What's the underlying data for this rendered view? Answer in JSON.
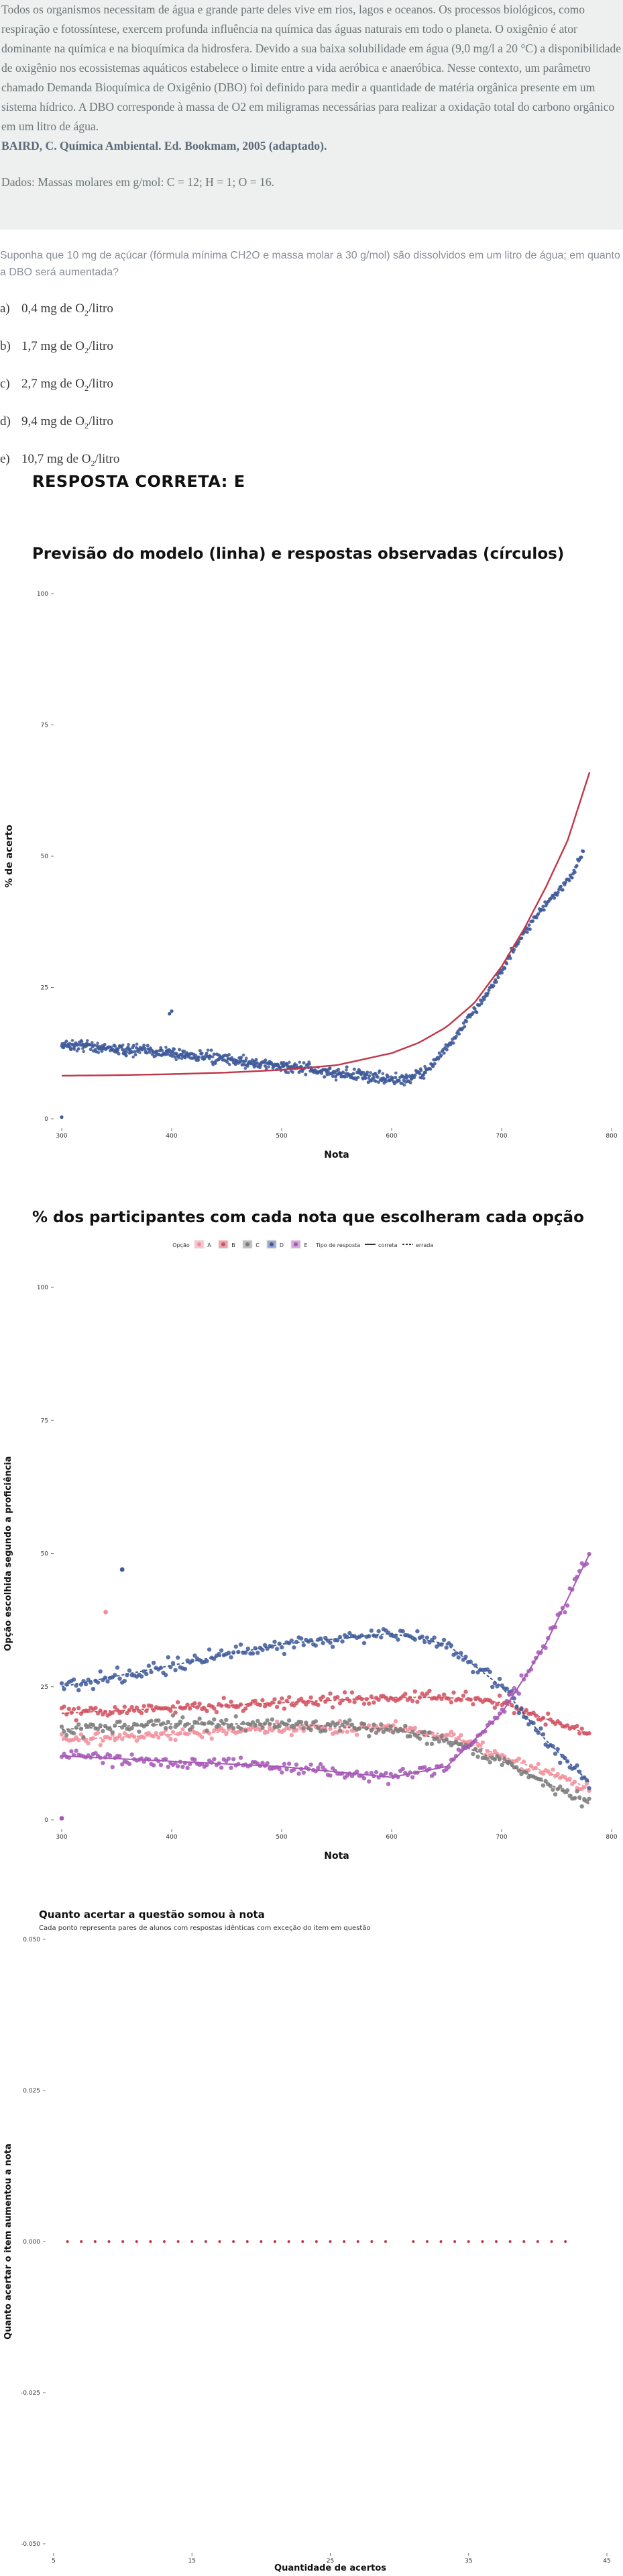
{
  "passage": {
    "text": "Todos os organismos necessitam de água e grande parte deles vive em rios, lagos e oceanos. Os processos biológicos, como respiração e fotossíntese, exercem profunda influência na química das águas naturais em todo o planeta. O oxigênio é ator dominante na química e na bioquímica da hidrosfera. Devido a sua baixa solubilidade em água (9,0 mg/l a 20 °C) a disponibilidade de oxigênio nos ecossistemas aquáticos estabelece o limite entre a vida aeróbica e anaeróbica. Nesse contexto, um parâmetro chamado Demanda Bioquímica de Oxigênio (DBO) foi definido para medir a quantidade de matéria orgânica presente em um sistema hídrico. A DBO corresponde à massa de O2 em miligramas necessárias para realizar a oxidação total do carbono orgânico em um litro de água.",
    "citation": "BAIRD, C. Química Ambiental. Ed. Bookmam, 2005 (adaptado).",
    "data_line": "Dados: Massas molares em g/mol: C = 12; H = 1; O = 16."
  },
  "question": "Suponha que 10 mg de açúcar (fórmula mínima CH2O e massa molar a 30 g/mol) são dissolvidos em um litro de água; em quanto a DBO será aumentada?",
  "options": [
    {
      "letter": "a)",
      "value": "0,4 mg de O",
      "sub": "2",
      "unit": "/litro"
    },
    {
      "letter": "b)",
      "value": "1,7 mg de O",
      "sub": "2",
      "unit": "/litro"
    },
    {
      "letter": "c)",
      "value": "2,7 mg de O",
      "sub": "2",
      "unit": "/litro"
    },
    {
      "letter": "d)",
      "value": "9,4 mg de O",
      "sub": "2",
      "unit": "/litro"
    },
    {
      "letter": "e)",
      "value": "10,7 mg de O",
      "sub": "2",
      "unit": "/litro"
    }
  ],
  "answer": "RESPOSTA CORRETA: E",
  "colors": {
    "A": "#f28e9b",
    "B": "#d0505e",
    "C": "#7a7a7a",
    "D": "#3f5a9a",
    "E": "#a557b5",
    "model": "#c2364a",
    "observed": "#3f5a9a"
  },
  "chart_data": [
    {
      "type": "scatter",
      "title": "Previsão do modelo (linha) e respostas observadas (círculos)",
      "xlabel": "Nota",
      "ylabel": "% de acerto",
      "xlim": [
        300,
        800
      ],
      "ylim": [
        0,
        100
      ],
      "xticks": [
        "300",
        "400",
        "500",
        "600",
        "700",
        "800"
      ],
      "yticks": [
        "0",
        "25",
        "50",
        "75",
        "100"
      ],
      "series": [
        {
          "kind": "line",
          "x": [
            300,
            350,
            400,
            450,
            500,
            550,
            600,
            625,
            650,
            675,
            700,
            720,
            740,
            760,
            780
          ],
          "y": [
            8.2,
            8.3,
            8.5,
            8.8,
            9.3,
            10.2,
            12.5,
            14.5,
            17.5,
            22,
            29,
            36,
            44,
            53,
            66
          ]
        },
        {
          "kind": "points",
          "x": [
            300,
            320,
            340,
            360,
            380,
            400,
            420,
            440,
            460,
            480,
            500,
            520,
            540,
            560,
            580,
            600,
            610,
            620,
            630,
            640,
            650,
            660,
            670,
            680,
            690,
            700,
            710,
            720,
            730,
            740,
            750,
            760,
            775
          ],
          "y": [
            14,
            14,
            13.5,
            13,
            13,
            12.5,
            12,
            11.5,
            11,
            10.5,
            10,
            9.5,
            9,
            8.5,
            8,
            7.5,
            7.5,
            8,
            9,
            11,
            13.5,
            16,
            19,
            22,
            25,
            28,
            32,
            35,
            38,
            41,
            43,
            45,
            51
          ]
        }
      ]
    },
    {
      "type": "scatter",
      "title": "% dos participantes com cada nota que escolheram cada opção",
      "xlabel": "Nota",
      "ylabel": "Opção escolhida segundo a proficiência",
      "legend_title_option": "Opção",
      "legend_title_type": "Tipo de resposta",
      "legend_options": [
        "A",
        "B",
        "C",
        "D",
        "E"
      ],
      "legend_types": [
        "correta",
        "errada"
      ],
      "legend": "top",
      "xlim": [
        300,
        800
      ],
      "ylim": [
        0,
        100
      ],
      "xticks": [
        "300",
        "400",
        "500",
        "600",
        "700",
        "800"
      ],
      "yticks": [
        "0",
        "25",
        "50",
        "75",
        "100"
      ],
      "series": [
        {
          "option": "A",
          "x": [
            300,
            400,
            500,
            600,
            650,
            700,
            740,
            780
          ],
          "y": [
            15,
            16,
            17,
            17.5,
            16,
            12,
            9,
            6
          ]
        },
        {
          "option": "B",
          "x": [
            300,
            400,
            500,
            600,
            650,
            700,
            740,
            780
          ],
          "y": [
            20,
            21,
            22,
            23,
            23,
            22,
            19,
            16
          ]
        },
        {
          "option": "C",
          "x": [
            300,
            400,
            500,
            600,
            650,
            700,
            740,
            780
          ],
          "y": [
            17,
            18,
            18,
            17,
            15,
            11,
            7,
            3
          ]
        },
        {
          "option": "D",
          "x": [
            300,
            400,
            500,
            600,
            650,
            700,
            740,
            780
          ],
          "y": [
            25,
            29,
            33,
            35,
            33,
            25,
            15,
            7
          ]
        },
        {
          "option": "E",
          "x": [
            300,
            400,
            500,
            600,
            650,
            700,
            740,
            780
          ],
          "y": [
            12,
            11,
            10,
            8,
            10,
            20,
            33,
            50
          ]
        }
      ]
    },
    {
      "type": "scatter",
      "title": "Quanto acertar a questão somou à nota",
      "subtitle": "Cada ponto representa pares de alunos com respostas idênticas com exceção do item em questão",
      "xlabel": "Quantidade de acertos",
      "ylabel": "Quanto acertar o item aumentou a nota",
      "xlim": [
        5,
        45
      ],
      "ylim": [
        -0.05,
        0.05
      ],
      "xticks": [
        "5",
        "15",
        "25",
        "35",
        "45"
      ],
      "yticks": [
        "-0.050",
        "-0.025",
        "0.000",
        "0.025",
        "0.050"
      ],
      "points": {
        "x": [
          6,
          7,
          8,
          9,
          10,
          11,
          12,
          13,
          14,
          15,
          16,
          17,
          18,
          19,
          20,
          21,
          22,
          23,
          24,
          25,
          26,
          27,
          28,
          29,
          31,
          32,
          33,
          34,
          35,
          36,
          37,
          38,
          39,
          40,
          41,
          42
        ],
        "y": 0
      }
    }
  ]
}
